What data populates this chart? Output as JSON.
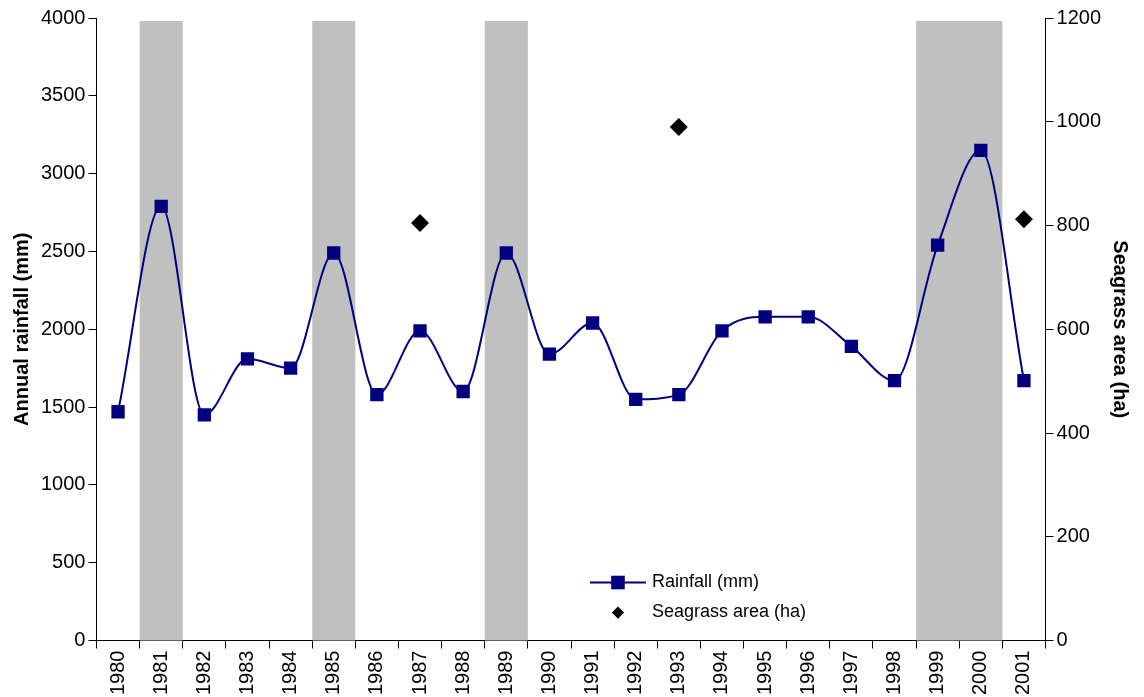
{
  "chart_data": {
    "type": "line",
    "ylabel": "Annual rainfall (mm)",
    "y2label": "Seagrass area (ha)",
    "categories": [
      "1980",
      "1981",
      "1982",
      "1983",
      "1984",
      "1985",
      "1986",
      "1987",
      "1988",
      "1989",
      "1990",
      "1991",
      "1992",
      "1993",
      "1994",
      "1995",
      "1996",
      "1997",
      "1998",
      "1999",
      "2000",
      "2001"
    ],
    "series": [
      {
        "name": "Rainfall (mm)",
        "color": "#000080",
        "marker": "square",
        "values": [
          1470,
          2790,
          1450,
          1810,
          1750,
          2490,
          1580,
          1990,
          1600,
          2490,
          1840,
          2040,
          1550,
          1580,
          1990,
          2080,
          2080,
          1890,
          1670,
          2540,
          3150,
          1670
        ]
      },
      {
        "name": "Seagrass area (ha)",
        "type": "scatter",
        "axis": "y2",
        "color": "#000000",
        "marker": "diamond",
        "values": [
          null,
          null,
          null,
          null,
          null,
          null,
          null,
          805,
          null,
          null,
          null,
          null,
          null,
          990,
          null,
          null,
          null,
          null,
          null,
          null,
          null,
          812
        ]
      }
    ],
    "ylim": [
      0,
      4000
    ],
    "yticks": [
      0,
      500,
      1000,
      1500,
      2000,
      2500,
      3000,
      3500,
      4000
    ],
    "y2lim": [
      0,
      1200
    ],
    "y2ticks": [
      0,
      200,
      400,
      600,
      800,
      1000,
      1200
    ],
    "bands": [
      {
        "axis": "x",
        "from": "1981",
        "to": "1981",
        "color": "#c0c0c0"
      },
      {
        "axis": "x",
        "from": "1985",
        "to": "1985",
        "color": "#c0c0c0"
      },
      {
        "axis": "x",
        "from": "1989",
        "to": "1989",
        "color": "#c0c0c0"
      },
      {
        "axis": "x",
        "from": "1999",
        "to": "2000",
        "color": "#c0c0c0"
      }
    ],
    "grid": false,
    "legend": "bottom"
  }
}
